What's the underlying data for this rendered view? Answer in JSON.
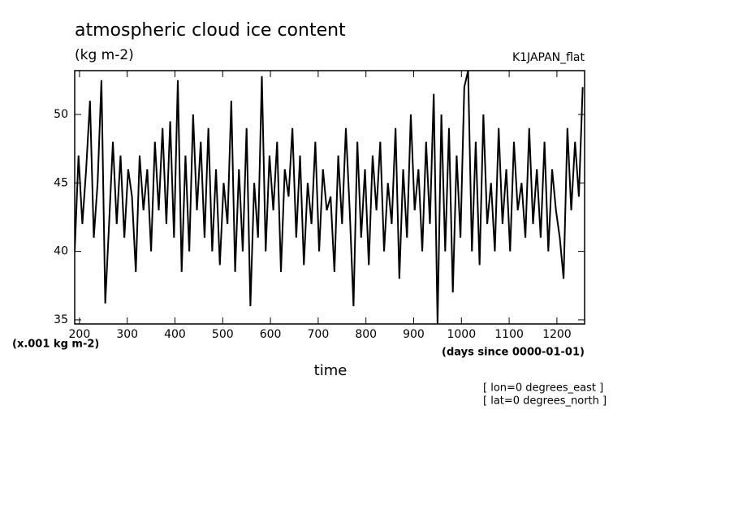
{
  "chart_data": {
    "type": "line",
    "title": "atmospheric cloud ice content",
    "subtitle": "(kg m-2)",
    "dataset": "K1JAPAN_flat",
    "ylabel": "(x.001 kg m-2)",
    "xunits": "(days since 0000-01-01)",
    "xlabel": "time",
    "annotations": [
      "[ lon=0 degrees_east ]",
      "[ lat=0 degrees_north ]"
    ],
    "color": "#000000",
    "x": [
      190,
      198,
      206,
      214,
      222,
      230,
      238,
      246,
      254,
      262,
      270,
      278,
      286,
      294,
      302,
      310,
      318,
      326,
      334,
      342,
      350,
      358,
      366,
      374,
      382,
      390,
      398,
      406,
      414,
      422,
      430,
      438,
      446,
      454,
      462,
      470,
      478,
      486,
      494,
      502,
      510,
      518,
      526,
      534,
      542,
      550,
      558,
      566,
      574,
      582,
      590,
      598,
      606,
      614,
      622,
      630,
      638,
      646,
      654,
      662,
      670,
      678,
      686,
      694,
      702,
      710,
      718,
      726,
      734,
      742,
      750,
      758,
      766,
      774,
      782,
      790,
      798,
      806,
      814,
      822,
      830,
      838,
      846,
      854,
      862,
      870,
      878,
      886,
      894,
      902,
      910,
      918,
      926,
      934,
      942,
      950,
      958,
      966,
      974,
      982,
      990,
      998,
      1006,
      1014,
      1022,
      1030,
      1038,
      1046,
      1054,
      1062,
      1070,
      1078,
      1086,
      1094,
      1102,
      1110,
      1118,
      1126,
      1134,
      1142,
      1150,
      1158,
      1166,
      1174,
      1182,
      1190,
      1198,
      1206,
      1214,
      1222,
      1230,
      1238,
      1246,
      1254
    ],
    "values": [
      40,
      47,
      42,
      46,
      51,
      41,
      45,
      52.5,
      36.2,
      42,
      48,
      42,
      47,
      41,
      46,
      44,
      38.5,
      47,
      43,
      46,
      40,
      48,
      43,
      49,
      42,
      49.5,
      41,
      52.5,
      38.5,
      47,
      40,
      50,
      43,
      48,
      41,
      49,
      40,
      46,
      39,
      45,
      42,
      51,
      38.5,
      46,
      40,
      49,
      36,
      45,
      41,
      52.8,
      40,
      47,
      43,
      48,
      38.5,
      46,
      44,
      49,
      41,
      47,
      39,
      45,
      42,
      48,
      40,
      46,
      43,
      44,
      38.5,
      47,
      42,
      49,
      43,
      36,
      48,
      41,
      46,
      39,
      47,
      43,
      48,
      40,
      45,
      42,
      49,
      38,
      46,
      41,
      50,
      43,
      46,
      40,
      48,
      42,
      51.5,
      34.7,
      50,
      40,
      49,
      37,
      47,
      41,
      52,
      53.2,
      40,
      48,
      39,
      50,
      42,
      45,
      40,
      49,
      42,
      46,
      40,
      48,
      43,
      45,
      41,
      49,
      42,
      46,
      41,
      48,
      40,
      46,
      43,
      41,
      38,
      49,
      43,
      48,
      44,
      52
    ],
    "xlim": [
      190,
      1258
    ],
    "ylim": [
      34.7,
      53.2
    ],
    "xticks": [
      200,
      300,
      400,
      500,
      600,
      700,
      800,
      900,
      1000,
      1100,
      1200
    ],
    "yticks": [
      35,
      40,
      45,
      50
    ]
  }
}
